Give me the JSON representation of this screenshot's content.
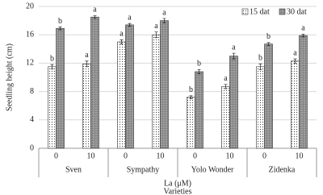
{
  "chart_data": {
    "type": "bar",
    "y_label": "Seedling height (cm)",
    "x_label": "La (μM)",
    "x_group_label": "Varieties",
    "groups": [
      "Sven",
      "Sympathy",
      "Yolo Wonder",
      "Zidenka"
    ],
    "categories": [
      "0",
      "10",
      "0",
      "10",
      "0",
      "10",
      "0",
      "10"
    ],
    "series": [
      {
        "name": "15 dat",
        "color": "#ffffff",
        "pattern": "dots",
        "values": [
          11.5,
          11.9,
          15.0,
          16.0,
          7.2,
          8.7,
          11.5,
          12.3
        ],
        "errors": [
          0.3,
          0.4,
          0.3,
          0.4,
          0.2,
          0.3,
          0.4,
          0.3
        ],
        "letters": [
          "b",
          "a",
          "a",
          "a",
          "b",
          "a",
          "b",
          "a"
        ]
      },
      {
        "name": "30 dat",
        "color": "#9e9e9e",
        "pattern": "grid",
        "values": [
          16.9,
          18.5,
          17.4,
          18.0,
          10.8,
          13.0,
          14.7,
          15.9
        ],
        "errors": [
          0.2,
          0.2,
          0.2,
          0.3,
          0.3,
          0.4,
          0.2,
          0.2
        ],
        "letters": [
          "b",
          "a",
          "a",
          "a",
          "b",
          "a",
          "b",
          "a"
        ]
      }
    ],
    "ylim": [
      0,
      20
    ],
    "yticks": [
      0,
      4,
      8,
      12,
      16,
      20
    ],
    "grid": true,
    "legend": "top-right"
  }
}
